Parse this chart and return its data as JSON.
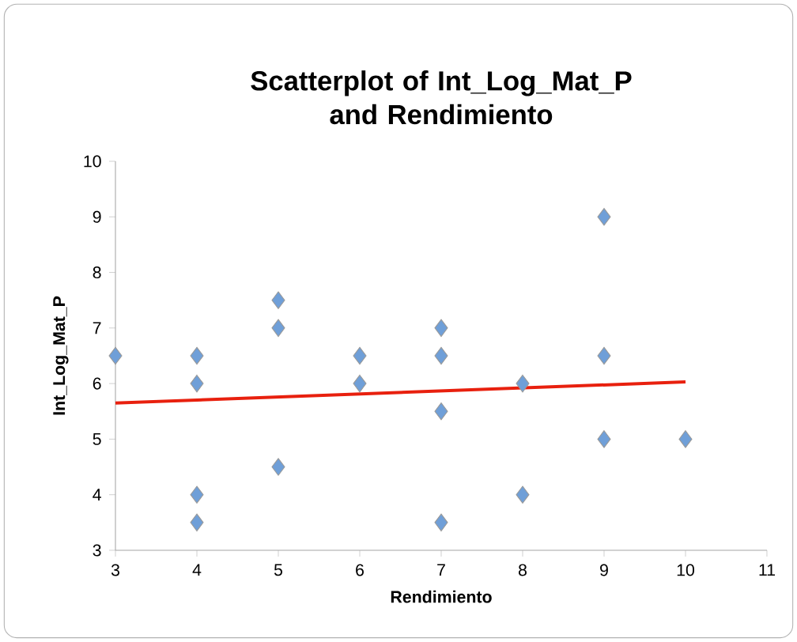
{
  "chart_data": {
    "type": "scatter",
    "title": "Scatterplot of Int_Log_Mat_P and Rendimiento",
    "xlabel": "Rendimiento",
    "ylabel": "Int_Log_Mat_P",
    "xlim": [
      3,
      11
    ],
    "xticks": [
      3,
      4,
      5,
      6,
      7,
      8,
      9,
      10,
      11
    ],
    "ylim": [
      3,
      10
    ],
    "yticks": [
      3,
      4,
      5,
      6,
      7,
      8,
      9,
      10
    ],
    "grid": false,
    "series": [
      {
        "marker": "diamond",
        "color": "#6f9fd8",
        "x": [
          3,
          4,
          4,
          4,
          4,
          5,
          5,
          5,
          6,
          6,
          7,
          7,
          7,
          7,
          8,
          8,
          9,
          9,
          9,
          10
        ],
        "values": [
          6.5,
          6.5,
          6,
          4,
          3.5,
          7.5,
          7,
          4.5,
          6.5,
          6,
          7,
          6.5,
          5.5,
          3.5,
          6,
          4,
          9,
          6.5,
          5,
          5
        ]
      },
      {
        "type": "line",
        "color": "#e8200e",
        "x": [
          3,
          10
        ],
        "values": [
          5.65,
          6.03
        ]
      }
    ]
  }
}
